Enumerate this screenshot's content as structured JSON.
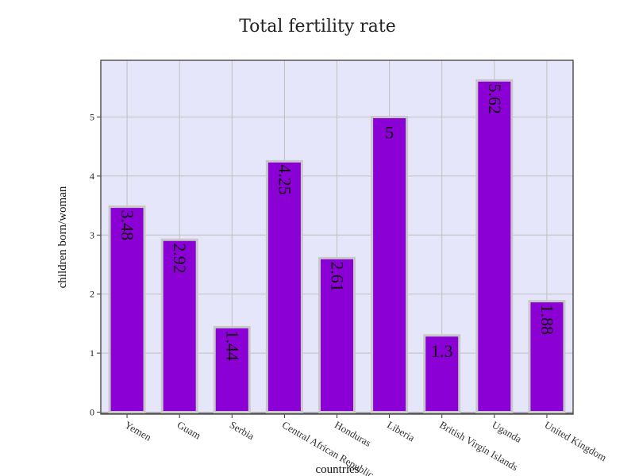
{
  "chart_data": {
    "type": "bar",
    "title": "Total fertility rate",
    "xlabel": "countries",
    "ylabel": "children born/woman",
    "categories": [
      "Yemen",
      "Guam",
      "Serbia",
      "Central African Republic",
      "Honduras",
      "Liberia",
      "British Virgin Islands",
      "Uganda",
      "United Kingdom"
    ],
    "values": [
      3.48,
      2.92,
      1.44,
      4.25,
      2.61,
      5,
      1.3,
      5.62,
      1.88
    ],
    "data_labels": [
      "3.48",
      "2.92",
      "1.44",
      "4.25",
      "2.61",
      "5",
      "1.3",
      "5.62",
      "1.88"
    ],
    "ylim": [
      0,
      5.95
    ],
    "yticks": [
      "0",
      "1",
      "2",
      "3",
      "4",
      "5"
    ],
    "grid": true,
    "colors": {
      "bar_fill": "#8b00d4",
      "bar_stroke": "#c8c8c8",
      "plot_bg": "#e6e6fa",
      "grid": "#c0c0c0",
      "frame": "#555555"
    }
  }
}
